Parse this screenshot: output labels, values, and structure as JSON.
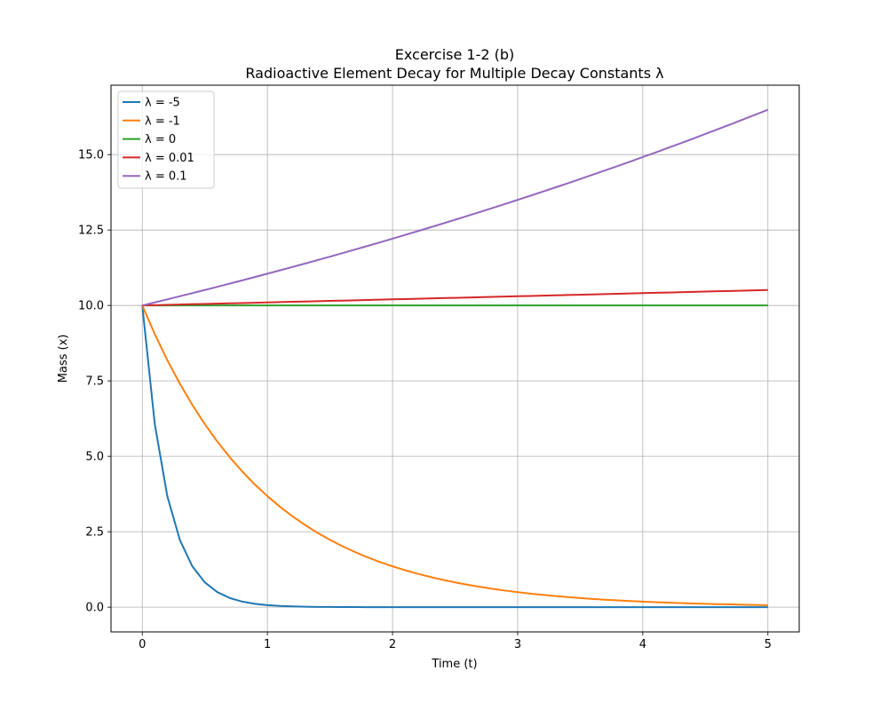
{
  "chart_data": {
    "type": "line",
    "title": "Excercise 1-2 (b)",
    "subtitle": "Radioactive Element Decay for Multiple Decay Constants λ",
    "xlabel": "Time (t)",
    "ylabel": "Mass (x)",
    "xlim": [
      -0.25,
      5.25
    ],
    "ylim": [
      -0.82,
      17.3
    ],
    "xticks": [
      "0",
      "1",
      "2",
      "3",
      "4",
      "5"
    ],
    "yticks": [
      "0.0",
      "2.5",
      "5.0",
      "7.5",
      "10.0",
      "12.5",
      "15.0"
    ],
    "grid": true,
    "legend_position": "top-left",
    "x": [
      0,
      0.1,
      0.2,
      0.3,
      0.4,
      0.5,
      0.6,
      0.7,
      0.8,
      0.9,
      1.0,
      1.1,
      1.2,
      1.3,
      1.4,
      1.5,
      1.6,
      1.7,
      1.8,
      1.9,
      2.0,
      2.1,
      2.2,
      2.3,
      2.4,
      2.5,
      2.6,
      2.7,
      2.8,
      2.9,
      3.0,
      3.1,
      3.2,
      3.3,
      3.4,
      3.5,
      3.6,
      3.7,
      3.8,
      3.9,
      4.0,
      4.1,
      4.2,
      4.3,
      4.4,
      4.5,
      4.6,
      4.7,
      4.8,
      4.9,
      5.0
    ],
    "series": [
      {
        "name": "λ = -5",
        "color": "#1f77b4",
        "values": [
          10.0,
          6.065,
          3.679,
          2.231,
          1.353,
          0.821,
          0.498,
          0.302,
          0.183,
          0.111,
          0.067,
          0.041,
          0.025,
          0.015,
          0.009,
          0.006,
          0.003,
          0.002,
          0.001,
          0.001,
          0.0,
          0.0,
          0.0,
          0.0,
          0.0,
          0.0,
          0.0,
          0.0,
          0.0,
          0.0,
          0.0,
          0.0,
          0.0,
          0.0,
          0.0,
          0.0,
          0.0,
          0.0,
          0.0,
          0.0,
          0.0,
          0.0,
          0.0,
          0.0,
          0.0,
          0.0,
          0.0,
          0.0,
          0.0,
          0.0,
          0.0
        ]
      },
      {
        "name": "λ = -1",
        "color": "#ff7f0e",
        "values": [
          10.0,
          9.048,
          8.187,
          7.408,
          6.703,
          6.065,
          5.488,
          4.966,
          4.493,
          4.066,
          3.679,
          3.329,
          3.012,
          2.725,
          2.466,
          2.231,
          2.019,
          1.827,
          1.653,
          1.496,
          1.353,
          1.225,
          1.108,
          1.003,
          0.907,
          0.821,
          0.743,
          0.672,
          0.608,
          0.55,
          0.498,
          0.45,
          0.408,
          0.369,
          0.334,
          0.302,
          0.273,
          0.247,
          0.224,
          0.202,
          0.183,
          0.166,
          0.15,
          0.136,
          0.123,
          0.111,
          0.101,
          0.091,
          0.082,
          0.074,
          0.067
        ]
      },
      {
        "name": "λ = 0",
        "color": "#2ca02c",
        "values": [
          10,
          10,
          10,
          10,
          10,
          10,
          10,
          10,
          10,
          10,
          10,
          10,
          10,
          10,
          10,
          10,
          10,
          10,
          10,
          10,
          10,
          10,
          10,
          10,
          10,
          10,
          10,
          10,
          10,
          10,
          10,
          10,
          10,
          10,
          10,
          10,
          10,
          10,
          10,
          10,
          10,
          10,
          10,
          10,
          10,
          10,
          10,
          10,
          10,
          10,
          10
        ]
      },
      {
        "name": "λ = 0.01",
        "color": "#d62728",
        "values": [
          10.0,
          10.01,
          10.02,
          10.03,
          10.04,
          10.05,
          10.06,
          10.07,
          10.08,
          10.09,
          10.101,
          10.111,
          10.121,
          10.131,
          10.141,
          10.151,
          10.161,
          10.171,
          10.182,
          10.192,
          10.202,
          10.212,
          10.222,
          10.233,
          10.243,
          10.253,
          10.263,
          10.274,
          10.284,
          10.294,
          10.305,
          10.315,
          10.325,
          10.336,
          10.346,
          10.356,
          10.367,
          10.377,
          10.387,
          10.398,
          10.408,
          10.419,
          10.429,
          10.439,
          10.45,
          10.46,
          10.471,
          10.481,
          10.492,
          10.502,
          10.513
        ]
      },
      {
        "name": "λ = 0.1",
        "color": "#9467bd",
        "values": [
          10.0,
          10.101,
          10.202,
          10.305,
          10.408,
          10.513,
          10.618,
          10.725,
          10.833,
          10.942,
          11.052,
          11.163,
          11.275,
          11.388,
          11.503,
          11.618,
          11.735,
          11.853,
          11.972,
          12.092,
          12.214,
          12.337,
          12.461,
          12.586,
          12.712,
          12.84,
          12.969,
          13.1,
          13.231,
          13.364,
          13.499,
          13.634,
          13.771,
          13.91,
          14.049,
          14.191,
          14.333,
          14.477,
          14.623,
          14.77,
          14.918,
          15.068,
          15.22,
          15.373,
          15.527,
          15.683,
          15.841,
          16.0,
          16.161,
          16.323,
          16.487
        ]
      }
    ]
  }
}
